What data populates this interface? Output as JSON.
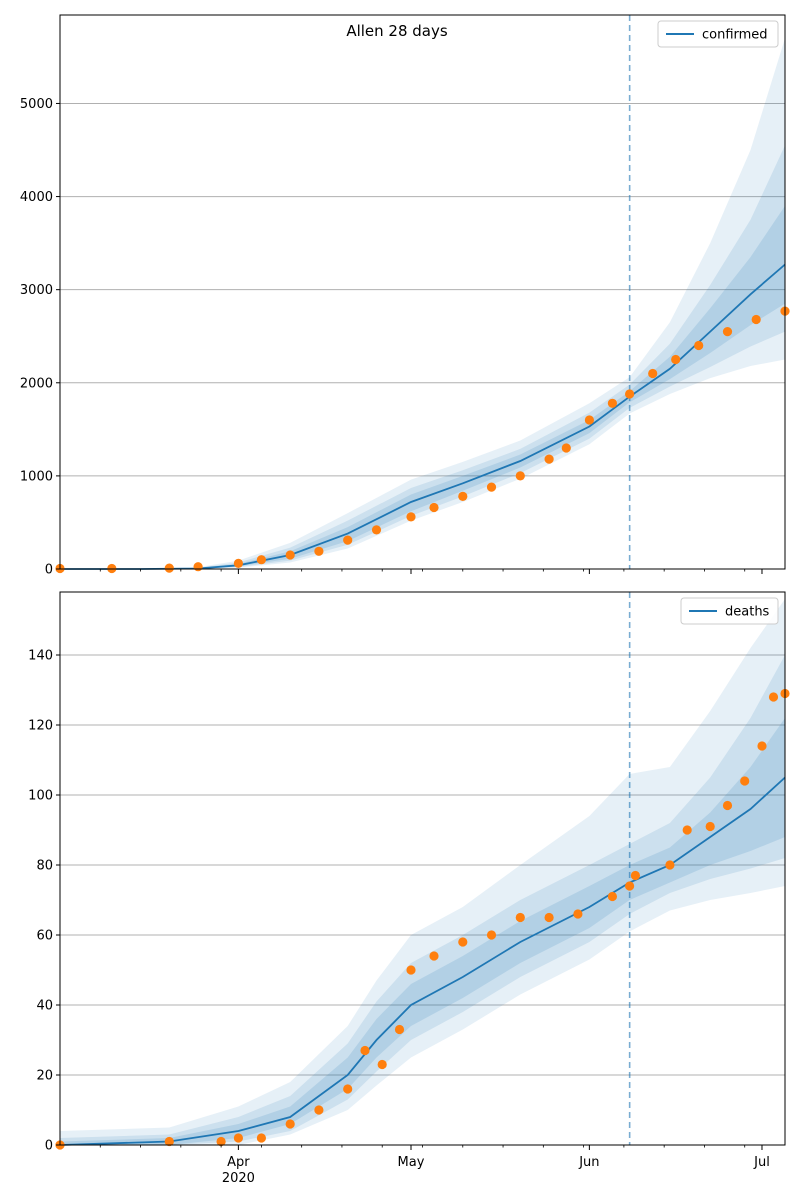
{
  "title": "Allen 28 days",
  "colors": {
    "line": "#1f77b4",
    "band": "#1f77b4",
    "points": "#ff7f0e",
    "grid": "#b0b0b0",
    "cutoff": "#1f77b4"
  },
  "xaxis": {
    "start": "2020-03-01",
    "end": "2020-07-05",
    "cutoff": "2020-06-08",
    "ticks": [
      {
        "date": "2020-04-01",
        "label": "Apr",
        "sublabel": "2020"
      },
      {
        "date": "2020-05-01",
        "label": "May",
        "sublabel": ""
      },
      {
        "date": "2020-06-01",
        "label": "Jun",
        "sublabel": ""
      },
      {
        "date": "2020-07-01",
        "label": "Jul",
        "sublabel": ""
      }
    ]
  },
  "chart_data": [
    {
      "type": "line",
      "legend": "confirmed",
      "legend_position": "top-right",
      "grid": "y",
      "ylim": [
        0,
        5950
      ],
      "yticks": [
        {
          "value": 0,
          "label": "0"
        },
        {
          "value": 1000,
          "label": "1000"
        },
        {
          "value": 2000,
          "label": "2000"
        },
        {
          "value": 3000,
          "label": "3000"
        },
        {
          "value": 4000,
          "label": "4000"
        },
        {
          "value": 5000,
          "label": "5000"
        }
      ],
      "model": {
        "x": [
          "2020-03-01",
          "2020-03-15",
          "2020-03-25",
          "2020-04-01",
          "2020-04-10",
          "2020-04-20",
          "2020-05-01",
          "2020-05-10",
          "2020-05-20",
          "2020-06-01",
          "2020-06-08",
          "2020-06-15",
          "2020-06-22",
          "2020-06-29",
          "2020-07-05"
        ],
        "median": [
          0,
          0,
          5,
          40,
          150,
          380,
          720,
          920,
          1160,
          1530,
          1850,
          2150,
          2550,
          2950,
          3270
        ],
        "band50_low": [
          0,
          0,
          3,
          30,
          110,
          300,
          620,
          840,
          1090,
          1460,
          1790,
          2040,
          2320,
          2620,
          2850
        ],
        "band50_high": [
          0,
          0,
          8,
          55,
          190,
          450,
          800,
          1000,
          1230,
          1600,
          1910,
          2280,
          2800,
          3350,
          3900
        ],
        "band80_low": [
          0,
          0,
          2,
          22,
          90,
          260,
          570,
          780,
          1030,
          1400,
          1730,
          1960,
          2170,
          2390,
          2550
        ],
        "band80_high": [
          0,
          0,
          12,
          70,
          230,
          520,
          870,
          1060,
          1290,
          1680,
          1980,
          2420,
          3050,
          3750,
          4550
        ],
        "band95_low": [
          0,
          0,
          1,
          15,
          70,
          220,
          520,
          720,
          970,
          1340,
          1670,
          1880,
          2050,
          2180,
          2250
        ],
        "band95_high": [
          0,
          0,
          18,
          90,
          280,
          600,
          960,
          1150,
          1380,
          1780,
          2060,
          2650,
          3500,
          4500,
          5700
        ]
      },
      "observed": {
        "x": [
          "2020-03-01",
          "2020-03-10",
          "2020-03-20",
          "2020-03-25",
          "2020-04-01",
          "2020-04-05",
          "2020-04-10",
          "2020-04-15",
          "2020-04-20",
          "2020-04-25",
          "2020-05-01",
          "2020-05-05",
          "2020-05-10",
          "2020-05-15",
          "2020-05-20",
          "2020-05-25",
          "2020-05-28",
          "2020-06-01",
          "2020-06-05",
          "2020-06-08",
          "2020-06-12",
          "2020-06-16",
          "2020-06-20",
          "2020-06-25",
          "2020-06-30",
          "2020-07-05"
        ],
        "values": [
          5,
          5,
          10,
          25,
          60,
          100,
          150,
          190,
          310,
          420,
          560,
          660,
          780,
          880,
          1000,
          1180,
          1300,
          1600,
          1780,
          1880,
          2100,
          2250,
          2400,
          2550,
          2680,
          2770
        ]
      }
    },
    {
      "type": "line",
      "legend": "deaths",
      "legend_position": "top-right",
      "grid": "y",
      "ylim": [
        0,
        158
      ],
      "yticks": [
        {
          "value": 0,
          "label": "0"
        },
        {
          "value": 20,
          "label": "20"
        },
        {
          "value": 40,
          "label": "40"
        },
        {
          "value": 60,
          "label": "60"
        },
        {
          "value": 80,
          "label": "80"
        },
        {
          "value": 100,
          "label": "100"
        },
        {
          "value": 120,
          "label": "120"
        },
        {
          "value": 140,
          "label": "140"
        }
      ],
      "model": {
        "x": [
          "2020-03-01",
          "2020-03-20",
          "2020-04-01",
          "2020-04-10",
          "2020-04-20",
          "2020-04-25",
          "2020-05-01",
          "2020-05-10",
          "2020-05-20",
          "2020-06-01",
          "2020-06-08",
          "2020-06-15",
          "2020-06-22",
          "2020-06-29",
          "2020-07-05"
        ],
        "median": [
          0,
          1,
          4,
          8,
          20,
          30,
          40,
          48,
          58,
          68,
          75,
          80,
          88,
          96,
          105
        ],
        "band50_low": [
          0,
          0,
          2,
          6,
          16,
          25,
          34,
          42,
          52,
          62,
          70,
          75,
          80,
          84,
          88
        ],
        "band50_high": [
          1,
          2,
          6,
          11,
          25,
          36,
          46,
          54,
          64,
          74,
          80,
          85,
          95,
          108,
          122
        ],
        "band80_low": [
          0,
          0,
          1,
          4,
          13,
          21,
          30,
          38,
          48,
          58,
          66,
          72,
          76,
          79,
          82
        ],
        "band80_high": [
          2,
          3,
          8,
          14,
          29,
          41,
          52,
          60,
          70,
          80,
          86,
          92,
          105,
          122,
          140
        ],
        "band95_low": [
          0,
          0,
          0,
          3,
          10,
          17,
          25,
          33,
          43,
          53,
          61,
          67,
          70,
          72,
          74
        ],
        "band95_high": [
          4,
          5,
          11,
          18,
          34,
          47,
          60,
          68,
          80,
          94,
          106,
          108,
          124,
          142,
          156
        ]
      },
      "observed": {
        "x": [
          "2020-03-01",
          "2020-03-20",
          "2020-03-29",
          "2020-04-01",
          "2020-04-05",
          "2020-04-10",
          "2020-04-15",
          "2020-04-20",
          "2020-04-23",
          "2020-04-26",
          "2020-04-29",
          "2020-05-01",
          "2020-05-05",
          "2020-05-10",
          "2020-05-15",
          "2020-05-20",
          "2020-05-25",
          "2020-05-30",
          "2020-06-05",
          "2020-06-08",
          "2020-06-09",
          "2020-06-15",
          "2020-06-18",
          "2020-06-22",
          "2020-06-25",
          "2020-06-28",
          "2020-07-01",
          "2020-07-03",
          "2020-07-05"
        ],
        "values": [
          0,
          1,
          1,
          2,
          2,
          6,
          10,
          16,
          27,
          23,
          33,
          50,
          54,
          58,
          60,
          65,
          65,
          66,
          71,
          74,
          77,
          80,
          90,
          91,
          97,
          104,
          114,
          128,
          129
        ]
      }
    }
  ]
}
